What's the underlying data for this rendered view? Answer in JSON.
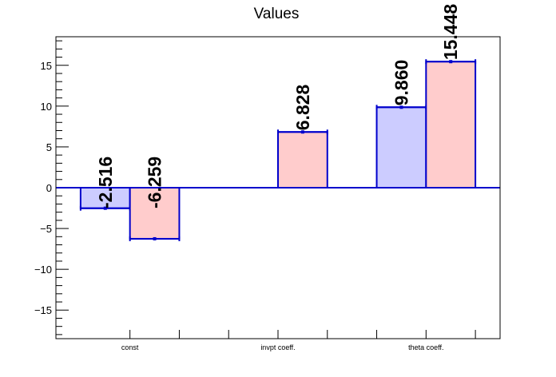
{
  "chart_data": {
    "type": "bar",
    "title": "Values",
    "categories": [
      "const",
      "invpt coeff.",
      "theta coeff."
    ],
    "series": [
      {
        "values": [
          -2.516,
          null,
          9.86
        ],
        "color": "#ccccff",
        "edge_color": "#0000cc"
      },
      {
        "values": [
          -6.259,
          6.828,
          15.448
        ],
        "color": "#ffcccc",
        "edge_color": "#0000cc"
      }
    ],
    "data_labels": [
      [
        "-2.516",
        null,
        "9.860"
      ],
      [
        "-6.259",
        "6.828",
        "15.448"
      ]
    ],
    "yticks": [
      -15,
      -10,
      -5,
      0,
      5,
      10,
      15
    ],
    "ytick_labels": [
      "−15",
      "−10",
      "−5",
      "0",
      "5",
      "10",
      "15"
    ],
    "ylim": [
      -18.5,
      18.5
    ],
    "xlabel": "",
    "ylabel": "",
    "grid": false,
    "legend": "none"
  }
}
